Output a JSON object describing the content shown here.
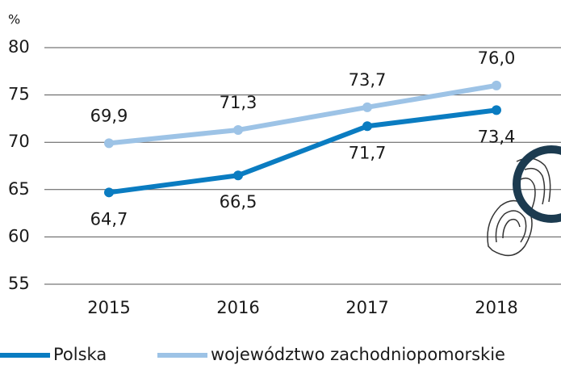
{
  "chart_data": {
    "type": "line",
    "ylabel": "%",
    "categories": [
      "2015",
      "2016",
      "2017",
      "2018"
    ],
    "series": [
      {
        "name": "Polska",
        "color": "#0a7cc1",
        "values": [
          64.7,
          66.5,
          71.7,
          73.4
        ],
        "value_labels": [
          "64,7",
          "66,5",
          "71,7",
          "73,4"
        ]
      },
      {
        "name": "województwo zachodniopomorskie",
        "color": "#9dc3e6",
        "values": [
          69.9,
          71.3,
          73.7,
          76.0
        ],
        "value_labels": [
          "69,9",
          "71,3",
          "73,7",
          "76,0"
        ]
      }
    ],
    "ylim": [
      55,
      80
    ],
    "yticks": [
      55,
      60,
      65,
      70,
      75,
      80
    ],
    "grid": true
  }
}
